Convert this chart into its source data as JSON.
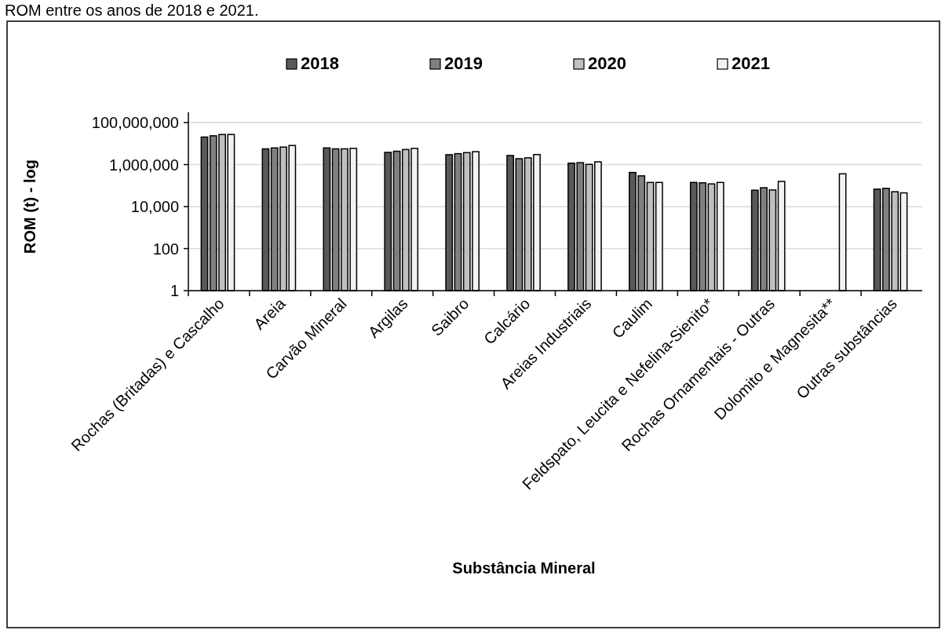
{
  "chart_data": {
    "type": "bar",
    "title": "ROM entre os anos de 2018 e 2021.",
    "xlabel": "Substância Mineral",
    "ylabel": "ROM (t) - log",
    "categories": [
      "Rochas (Britadas) e Cascalho",
      "Areia",
      "Carvão Mineral",
      "Argilas",
      "Saibro",
      "Calcário",
      "Areias Industriais",
      "Caulim",
      "Feldspato, Leucita e Nefelina-Sienito*",
      "Rochas Ornamentais - Outras",
      "Dolomito e Magnesita**",
      "Outras substâncias"
    ],
    "series": [
      {
        "name": "2018",
        "color": "#595959",
        "values": [
          20400000,
          5600000,
          6200000,
          3800000,
          2950000,
          2700000,
          1170000,
          420000,
          141000,
          60000,
          null,
          68000
        ]
      },
      {
        "name": "2019",
        "color": "#808080",
        "values": [
          23400000,
          6200000,
          5600000,
          4300000,
          3300000,
          1900000,
          1230000,
          290000,
          135000,
          79000,
          null,
          74000
        ]
      },
      {
        "name": "2020",
        "color": "#bfbfbf",
        "values": [
          27000000,
          6800000,
          5600000,
          5200000,
          3700000,
          2100000,
          1020000,
          141000,
          120000,
          62000,
          null,
          51000
        ]
      },
      {
        "name": "2021",
        "color": "#f2f2f2",
        "values": [
          27000000,
          8100000,
          5900000,
          5900000,
          4100000,
          3000000,
          1350000,
          141000,
          141000,
          158000,
          363000,
          45000
        ]
      }
    ],
    "log": true,
    "ylim": [
      1,
      100000000
    ],
    "yticks": [
      1,
      100,
      {
        "value": 10000,
        "label": "10,000"
      },
      {
        "value": 1000000,
        "label": "1,000,000"
      },
      {
        "value": 100000000,
        "label": "100,000,000"
      }
    ],
    "grid": "y",
    "legend": "top"
  }
}
